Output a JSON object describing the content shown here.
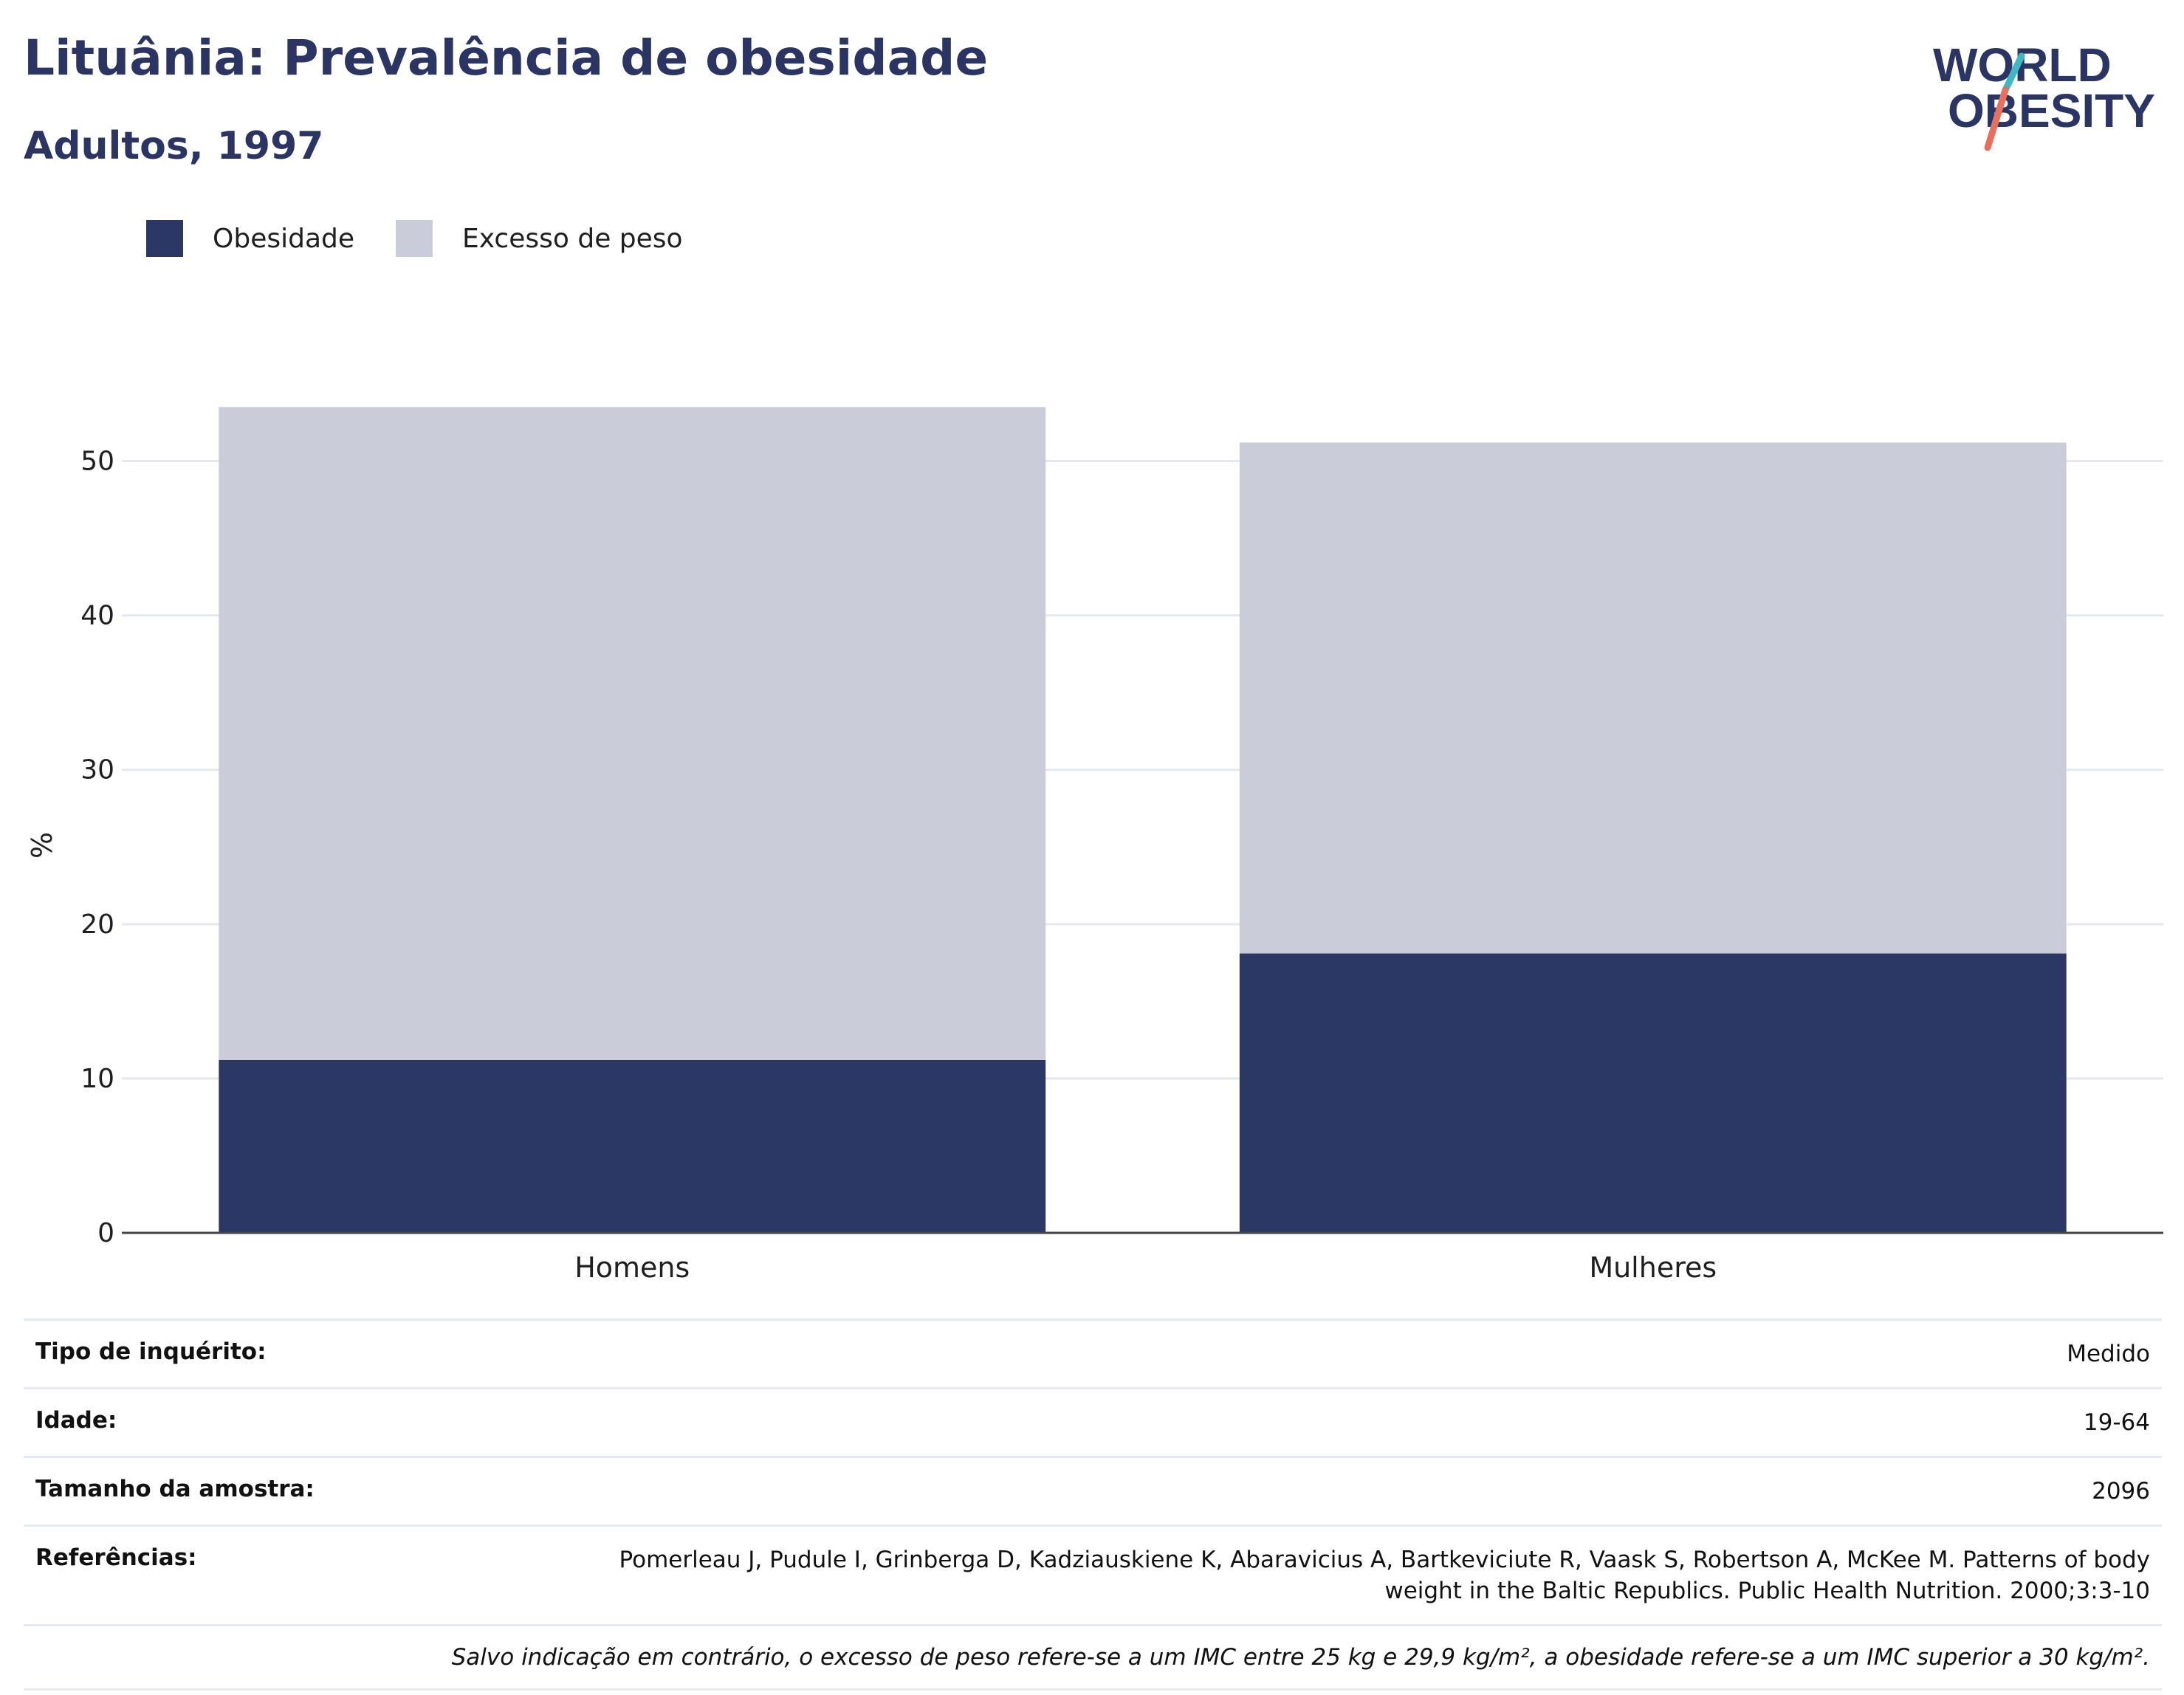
{
  "header": {
    "title": "Lituânia: Prevalência de obesidade",
    "subtitle": "Adultos, 1997"
  },
  "logo": {
    "line1": "WORLD",
    "line2": "OBESITY",
    "icon": "world-obesity-slash-logo"
  },
  "legend": [
    {
      "label": "Obesidade",
      "color": "#2b3764"
    },
    {
      "label": "Excesso de peso",
      "color": "#cacdd9"
    }
  ],
  "chart_data": {
    "type": "bar",
    "stacked": true,
    "categories": [
      "Homens",
      "Mulheres"
    ],
    "series": [
      {
        "name": "Obesidade",
        "values": [
          11.2,
          18.1
        ],
        "color": "#2b3764"
      },
      {
        "name": "Excesso de peso",
        "values": [
          42.3,
          33.1
        ],
        "color": "#cacdd9"
      }
    ],
    "ylabel": "%",
    "ylim": [
      0,
      55
    ],
    "yticks": [
      0,
      10,
      20,
      30,
      40,
      50
    ],
    "grid": true,
    "legend_position": "top-left"
  },
  "info": {
    "rows": [
      {
        "label": "Tipo de inquérito:",
        "value": "Medido"
      },
      {
        "label": "Idade:",
        "value": "19-64"
      },
      {
        "label": "Tamanho da amostra:",
        "value": "2096"
      },
      {
        "label": "Referências:",
        "value": "Pomerleau J, Pudule I, Grinberga D, Kadziauskiene K, Abaravicius A, Bartkeviciute R, Vaask S, Robertson A, McKee M. Patterns of body weight in the Baltic Republics. Public Health Nutrition. 2000;3:3-10"
      }
    ],
    "note": "Salvo indicação em contrário, o excesso de peso refere-se a um IMC entre 25 kg e 29,9 kg/m², a obesidade refere-se a um IMC superior a 30 kg/m²."
  }
}
